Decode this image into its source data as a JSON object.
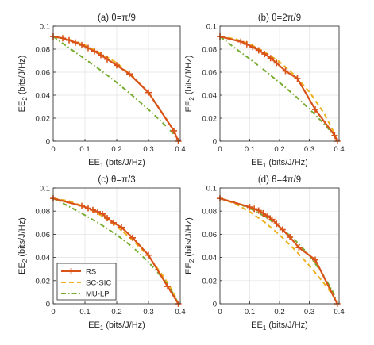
{
  "figure": {
    "legend": {
      "placement": "bottom-left of panel (c)",
      "entries": [
        {
          "label": "RS",
          "color": "#D95319",
          "style": "solid with plus markers"
        },
        {
          "label": "SC-SIC",
          "color": "#EDB120",
          "style": "dashed"
        },
        {
          "label": "MU-LP",
          "color": "#77AC30",
          "style": "dash-dot"
        }
      ]
    }
  },
  "chart_data": [
    {
      "type": "line",
      "title": "(a) θ=π/9",
      "xlabel": "EE_1 (bits/J/Hz)",
      "ylabel": "EE_2 (bits/J/Hz)",
      "xlim": [
        0,
        0.4
      ],
      "ylim": [
        0,
        0.1
      ],
      "xticks": [
        "0",
        "0.1",
        "0.2",
        "0.3",
        "0.4"
      ],
      "yticks": [
        "0",
        "0.02",
        "0.04",
        "0.06",
        "0.08",
        "0.1"
      ],
      "grid": true,
      "series": [
        {
          "name": "SC-SIC",
          "color": "#EDB120",
          "dash": "dashed",
          "x": [
            0,
            0.05,
            0.1,
            0.15,
            0.2,
            0.25,
            0.3,
            0.35,
            0.38,
            0.394
          ],
          "y": [
            0.091,
            0.0885,
            0.0835,
            0.0765,
            0.068,
            0.0565,
            0.042,
            0.022,
            0.009,
            0
          ]
        },
        {
          "name": "MU-LP",
          "color": "#77AC30",
          "dash": "dashdot",
          "x": [
            0,
            0.05,
            0.1,
            0.15,
            0.2,
            0.25,
            0.3,
            0.35,
            0.38,
            0.394
          ],
          "y": [
            0.091,
            0.081,
            0.0715,
            0.0615,
            0.051,
            0.0395,
            0.0275,
            0.0145,
            0.006,
            0
          ]
        },
        {
          "name": "RS",
          "color": "#D95319",
          "dash": "solid",
          "markers": true,
          "x": [
            0,
            0.03,
            0.05,
            0.07,
            0.09,
            0.11,
            0.13,
            0.15,
            0.17,
            0.2,
            0.24,
            0.3,
            0.38,
            0.394
          ],
          "y": [
            0.091,
            0.0895,
            0.0878,
            0.0858,
            0.0835,
            0.081,
            0.0782,
            0.0748,
            0.0712,
            0.066,
            0.0585,
            0.0423,
            0.009,
            0
          ]
        }
      ]
    },
    {
      "type": "line",
      "title": "(b) θ=2π/9",
      "xlabel": "EE_1 (bits/J/Hz)",
      "ylabel": "EE_2 (bits/J/Hz)",
      "xlim": [
        0,
        0.4
      ],
      "ylim": [
        0,
        0.1
      ],
      "xticks": [
        "0",
        "0.1",
        "0.2",
        "0.3",
        "0.4"
      ],
      "yticks": [
        "0",
        "0.02",
        "0.04",
        "0.06",
        "0.08",
        "0.1"
      ],
      "grid": true,
      "series": [
        {
          "name": "SC-SIC",
          "color": "#EDB120",
          "dash": "dashed",
          "x": [
            0,
            0.05,
            0.1,
            0.15,
            0.2,
            0.25,
            0.3,
            0.35,
            0.38,
            0.394
          ],
          "y": [
            0.091,
            0.089,
            0.0845,
            0.0775,
            0.069,
            0.0575,
            0.043,
            0.024,
            0.009,
            0
          ]
        },
        {
          "name": "MU-LP",
          "color": "#77AC30",
          "dash": "dashdot",
          "x": [
            0,
            0.05,
            0.1,
            0.15,
            0.2,
            0.25,
            0.3,
            0.35,
            0.38,
            0.394
          ],
          "y": [
            0.091,
            0.081,
            0.0715,
            0.0615,
            0.051,
            0.04,
            0.028,
            0.015,
            0.006,
            0
          ]
        },
        {
          "name": "RS",
          "color": "#D95319",
          "dash": "solid",
          "markers": true,
          "x": [
            0,
            0.07,
            0.09,
            0.11,
            0.13,
            0.15,
            0.17,
            0.19,
            0.22,
            0.26,
            0.32,
            0.385,
            0.394
          ],
          "y": [
            0.091,
            0.0865,
            0.0843,
            0.0818,
            0.079,
            0.0758,
            0.0722,
            0.068,
            0.061,
            0.0545,
            0.0275,
            0.005,
            0
          ]
        }
      ]
    },
    {
      "type": "line",
      "title": "(c) θ=π/3",
      "xlabel": "EE_1 (bits/J/Hz)",
      "ylabel": "EE_2 (bits/J/Hz)",
      "xlim": [
        0,
        0.4
      ],
      "ylim": [
        0,
        0.1
      ],
      "xticks": [
        "0",
        "0.1",
        "0.2",
        "0.3",
        "0.4"
      ],
      "yticks": [
        "0",
        "0.02",
        "0.04",
        "0.06",
        "0.08",
        "0.1"
      ],
      "grid": true,
      "series": [
        {
          "name": "SC-SIC",
          "color": "#EDB120",
          "dash": "dashed",
          "x": [
            0,
            0.05,
            0.1,
            0.15,
            0.2,
            0.25,
            0.3,
            0.35,
            0.38,
            0.394
          ],
          "y": [
            0.091,
            0.0887,
            0.0838,
            0.0765,
            0.0668,
            0.055,
            0.041,
            0.0225,
            0.009,
            0
          ]
        },
        {
          "name": "MU-LP",
          "color": "#77AC30",
          "dash": "dashdot",
          "x": [
            0,
            0.05,
            0.1,
            0.15,
            0.2,
            0.25,
            0.3,
            0.35,
            0.38,
            0.394
          ],
          "y": [
            0.091,
            0.084,
            0.0765,
            0.0685,
            0.0595,
            0.049,
            0.036,
            0.0205,
            0.008,
            0
          ]
        },
        {
          "name": "RS",
          "color": "#D95319",
          "dash": "solid",
          "markers": true,
          "x": [
            0,
            0.09,
            0.11,
            0.125,
            0.14,
            0.155,
            0.17,
            0.19,
            0.215,
            0.25,
            0.3,
            0.36,
            0.394
          ],
          "y": [
            0.091,
            0.0845,
            0.0825,
            0.081,
            0.0795,
            0.0775,
            0.074,
            0.07,
            0.066,
            0.057,
            0.042,
            0.015,
            0
          ]
        }
      ]
    },
    {
      "type": "line",
      "title": "(d) θ=4π/9",
      "xlabel": "EE_1 (bits/J/Hz)",
      "ylabel": "EE_2 (bits/J/Hz)",
      "xlim": [
        0,
        0.4
      ],
      "ylim": [
        0,
        0.1
      ],
      "xticks": [
        "0",
        "0.1",
        "0.2",
        "0.3",
        "0.4"
      ],
      "yticks": [
        "0",
        "0.02",
        "0.04",
        "0.06",
        "0.08",
        "0.1"
      ],
      "grid": true,
      "series": [
        {
          "name": "SC-SIC",
          "color": "#EDB120",
          "dash": "dashed",
          "x": [
            0,
            0.05,
            0.1,
            0.15,
            0.2,
            0.25,
            0.3,
            0.35,
            0.38,
            0.394
          ],
          "y": [
            0.091,
            0.0865,
            0.0795,
            0.0705,
            0.0595,
            0.047,
            0.033,
            0.0175,
            0.007,
            0
          ]
        },
        {
          "name": "MU-LP",
          "color": "#77AC30",
          "dash": "dashdot",
          "x": [
            0,
            0.05,
            0.1,
            0.15,
            0.2,
            0.25,
            0.3,
            0.35,
            0.38,
            0.394
          ],
          "y": [
            0.091,
            0.0875,
            0.0825,
            0.0755,
            0.0665,
            0.0555,
            0.042,
            0.0235,
            0.01,
            0
          ]
        },
        {
          "name": "RS",
          "color": "#D95319",
          "dash": "solid",
          "markers": true,
          "x": [
            0,
            0.1,
            0.115,
            0.13,
            0.145,
            0.16,
            0.175,
            0.19,
            0.21,
            0.235,
            0.265,
            0.32,
            0.394
          ],
          "y": [
            0.091,
            0.0835,
            0.082,
            0.0805,
            0.0782,
            0.0758,
            0.0728,
            0.069,
            0.064,
            0.0575,
            0.0485,
            0.038,
            0
          ]
        }
      ]
    }
  ]
}
